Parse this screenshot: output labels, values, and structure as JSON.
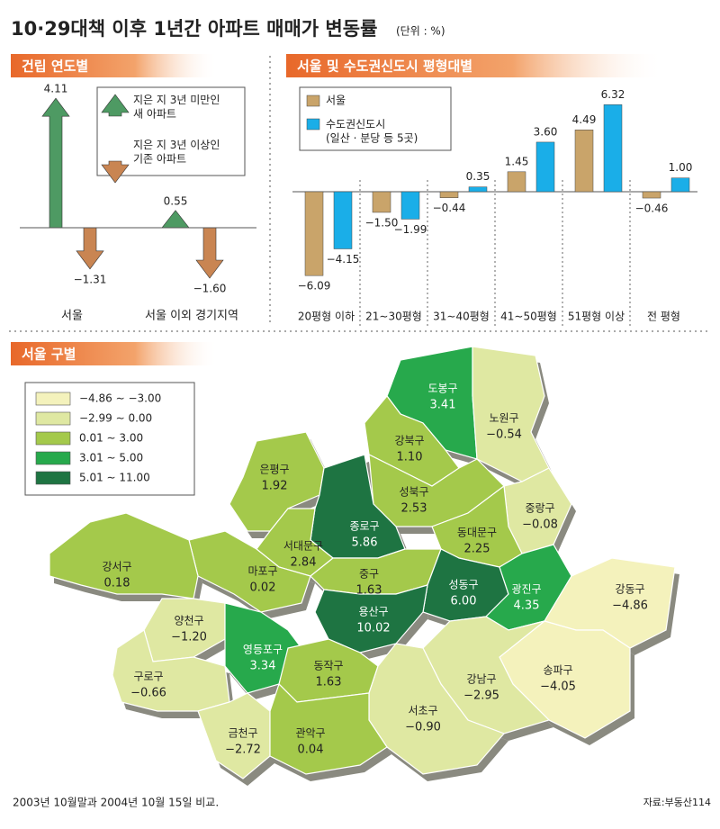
{
  "header": {
    "title": "10·29대책 이후 1년간 아파트 매매가 변동률",
    "unit": "(단위 : %)"
  },
  "chart_data": [
    {
      "type": "arrow",
      "title": "건립 연도별",
      "categories": [
        "서울",
        "서울 이외 경기지역"
      ],
      "series": [
        {
          "name": "지은 지 3년 미만인\n새 아파트",
          "color": "#4e9a63",
          "values": [
            4.11,
            0.55
          ],
          "value_labels": [
            "4.11",
            "0.55"
          ]
        },
        {
          "name": "지은 지 3년 이상인\n기존 아파트",
          "color": "#c98552",
          "values": [
            -1.31,
            -1.6
          ],
          "value_labels": [
            "−1.31",
            "−1.60"
          ]
        }
      ]
    },
    {
      "type": "bar",
      "title": "서울 및 수도권신도시 평형대별",
      "categories": [
        "20평형 이하",
        "21∼30평형",
        "31∼40평형",
        "41∼50평형",
        "51평형 이상",
        "전 평형"
      ],
      "series": [
        {
          "name": "서울",
          "color": "#c9a46a",
          "values": [
            -6.09,
            -1.5,
            -0.44,
            1.45,
            4.49,
            -0.46
          ],
          "value_labels": [
            "−6.09",
            "−1.50",
            "−0.44",
            "1.45",
            "4.49",
            "−0.46"
          ]
        },
        {
          "name": "수도권신도시\n(일산 · 분당 등 5곳)",
          "color": "#1aaee8",
          "values": [
            -4.15,
            -1.99,
            0.35,
            3.6,
            6.32,
            1.0
          ],
          "value_labels": [
            "−4.15",
            "−1.99",
            "0.35",
            "3.60",
            "6.32",
            "1.00"
          ]
        }
      ]
    },
    {
      "type": "map",
      "title": "서울 구별",
      "categories": [
        "도봉구",
        "노원구",
        "강북구",
        "성북구",
        "중랑구",
        "동대문구",
        "은평구",
        "종로구",
        "서대문구",
        "마포구",
        "중구",
        "성동구",
        "광진구",
        "강서구",
        "용산구",
        "강동구",
        "양천구",
        "영등포구",
        "동작구",
        "송파구",
        "강남구",
        "구로구",
        "서초구",
        "금천구",
        "관악구"
      ],
      "values": [
        3.41,
        -0.54,
        1.1,
        2.53,
        -0.08,
        2.25,
        1.92,
        5.86,
        2.84,
        0.02,
        1.63,
        6.0,
        4.35,
        0.18,
        10.02,
        -4.86,
        -1.2,
        3.34,
        1.63,
        -4.05,
        -2.95,
        -0.66,
        -0.9,
        -2.72,
        0.04
      ],
      "value_labels": [
        "3.41",
        "−0.54",
        "1.10",
        "2.53",
        "−0.08",
        "2.25",
        "1.92",
        "5.86",
        "2.84",
        "0.02",
        "1.63",
        "6.00",
        "4.35",
        "0.18",
        "10.02",
        "−4.86",
        "−1.20",
        "3.34",
        "1.63",
        "−4.05",
        "−2.95",
        "−0.66",
        "−0.90",
        "−2.72",
        "0.04"
      ],
      "legend": [
        {
          "label": "−4.86 ∼ −3.00",
          "min": -4.86,
          "max": -3.0,
          "color": "#f4f2bc"
        },
        {
          "label": "−2.99 ∼ 0.00",
          "min": -2.99,
          "max": 0.0,
          "color": "#dfe8a2"
        },
        {
          "label": "0.01 ∼ 3.00",
          "min": 0.01,
          "max": 3.0,
          "color": "#a4c94b"
        },
        {
          "label": "3.01 ∼ 5.00",
          "min": 3.01,
          "max": 5.0,
          "color": "#27a94c"
        },
        {
          "label": "5.01 ∼ 11.00",
          "min": 5.01,
          "max": 11.0,
          "color": "#1e7442"
        }
      ]
    }
  ],
  "footer": {
    "note": "2003년 10월말과 2004년 10월 15일 비교.",
    "source": "자료:부동산114"
  }
}
